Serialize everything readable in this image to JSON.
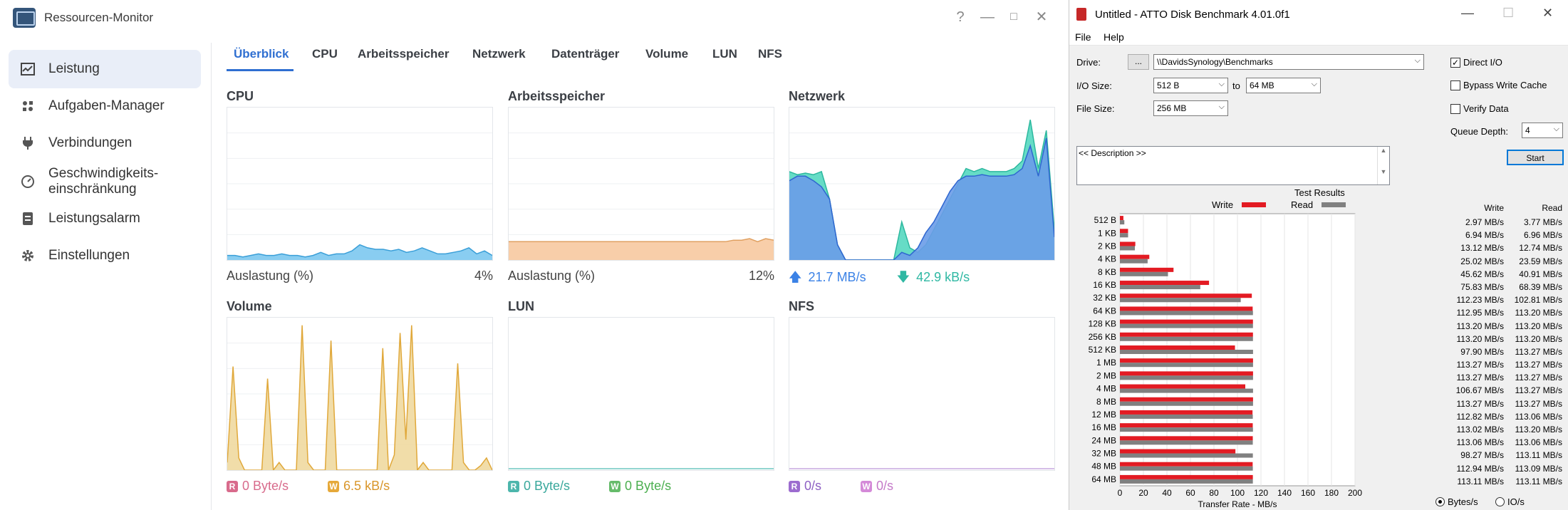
{
  "rm": {
    "title": "Ressourcen-Monitor",
    "window_buttons": [
      "?",
      "—",
      "□",
      "✕"
    ],
    "sidebar": [
      {
        "label": "Leistung",
        "icon": "chart-icon",
        "active": true
      },
      {
        "label": "Aufgaben-Manager",
        "icon": "tasks-icon",
        "active": false
      },
      {
        "label": "Verbindungen",
        "icon": "plug-icon",
        "active": false
      },
      {
        "label": "Geschwindigkeits-",
        "label2": "einschränkung",
        "icon": "gauge-icon",
        "active": false
      },
      {
        "label": "Leistungsalarm",
        "icon": "alarm-list-icon",
        "active": false
      },
      {
        "label": "Einstellungen",
        "icon": "gear-icon",
        "active": false
      }
    ],
    "tabs": [
      "Überblick",
      "CPU",
      "Arbeitsspeicher",
      "Netzwerk",
      "Datenträger",
      "Volume",
      "LUN",
      "NFS"
    ],
    "panels": {
      "cpu": {
        "title": "CPU",
        "foot_label": "Auslastung  (%)",
        "foot_value": "4%"
      },
      "mem": {
        "title": "Arbeitsspeicher",
        "foot_label": "Auslastung  (%)",
        "foot_value": "12%"
      },
      "net": {
        "title": "Netzwerk",
        "up": "21.7 MB/s",
        "down": "42.9 kB/s"
      },
      "vol": {
        "title": "Volume",
        "r_badge": "R",
        "r": "0 Byte/s",
        "w_badge": "W",
        "w": "6.5 kB/s"
      },
      "lun": {
        "title": "LUN",
        "r_badge": "R",
        "r": "0 Byte/s",
        "w_badge": "W",
        "w": "0 Byte/s"
      },
      "nfs": {
        "title": "NFS",
        "r_badge": "R",
        "r": "0/s",
        "w_badge": "W",
        "w": "0/s"
      }
    },
    "colors": {
      "accent": "#2f6fd1",
      "cpu": "#5fb7e8",
      "mem": "#f5c8a1",
      "net_up": "#3b82e6",
      "net_down": "#3ecfb4",
      "vol": "#e8c87a"
    }
  },
  "atto": {
    "title": "Untitled - ATTO Disk Benchmark 4.01.0f1",
    "menu": [
      "File",
      "Help"
    ],
    "drive_label": "Drive:",
    "drive_button": "...",
    "drive_value": "\\\\DavidsSynology\\Benchmarks",
    "io_label": "I/O Size:",
    "io_from": "512 B",
    "io_to_label": "to",
    "io_to": "64 MB",
    "filesize_label": "File Size:",
    "filesize": "256 MB",
    "direct_io": "Direct I/O",
    "bypass": "Bypass Write Cache",
    "verify": "Verify Data",
    "queue_label": "Queue Depth:",
    "queue": "4",
    "start": "Start",
    "description": "<< Description >>",
    "results_title": "Test Results",
    "write_legend": "Write",
    "read_legend": "Read",
    "col_write": "Write",
    "col_read": "Read",
    "xlabel": "Transfer Rate - MB/s",
    "unit_bytes": "Bytes/s",
    "unit_io": "IO/s"
  },
  "chart_data": [
    {
      "type": "bar",
      "title": "Test Results",
      "xlabel": "Transfer Rate - MB/s",
      "xlim": [
        0,
        200
      ],
      "x_ticks": [
        "0",
        "20",
        "40",
        "60",
        "80",
        "100",
        "120",
        "140",
        "160",
        "180",
        "200"
      ],
      "categories": [
        "512 B",
        "1 KB",
        "2 KB",
        "4 KB",
        "8 KB",
        "16 KB",
        "32 KB",
        "64 KB",
        "128 KB",
        "256 KB",
        "512 KB",
        "1 MB",
        "2 MB",
        "4 MB",
        "8 MB",
        "12 MB",
        "16 MB",
        "24 MB",
        "32 MB",
        "48 MB",
        "64 MB"
      ],
      "series": [
        {
          "name": "Write",
          "color": "#e31b23",
          "values": [
            2.97,
            6.94,
            13.12,
            25.02,
            45.62,
            75.83,
            112.23,
            112.95,
            113.2,
            113.2,
            97.9,
            113.27,
            113.27,
            106.67,
            113.27,
            112.82,
            113.02,
            113.06,
            98.27,
            112.94,
            113.11
          ]
        },
        {
          "name": "Read",
          "color": "#808080",
          "values": [
            3.77,
            6.96,
            12.74,
            23.59,
            40.91,
            68.39,
            102.81,
            113.2,
            113.2,
            113.2,
            113.27,
            113.27,
            113.27,
            113.27,
            113.27,
            113.06,
            113.2,
            113.06,
            113.11,
            113.09,
            113.11
          ]
        }
      ],
      "write_text": [
        "2.97 MB/s",
        "6.94 MB/s",
        "13.12 MB/s",
        "25.02 MB/s",
        "45.62 MB/s",
        "75.83 MB/s",
        "112.23 MB/s",
        "112.95 MB/s",
        "113.20 MB/s",
        "113.20 MB/s",
        "97.90 MB/s",
        "113.27 MB/s",
        "113.27 MB/s",
        "106.67 MB/s",
        "113.27 MB/s",
        "112.82 MB/s",
        "113.02 MB/s",
        "113.06 MB/s",
        "98.27 MB/s",
        "112.94 MB/s",
        "113.11 MB/s"
      ],
      "read_text": [
        "3.77 MB/s",
        "6.96 MB/s",
        "12.74 MB/s",
        "23.59 MB/s",
        "40.91 MB/s",
        "68.39 MB/s",
        "102.81 MB/s",
        "113.20 MB/s",
        "113.20 MB/s",
        "113.20 MB/s",
        "113.27 MB/s",
        "113.27 MB/s",
        "113.27 MB/s",
        "113.27 MB/s",
        "113.27 MB/s",
        "113.06 MB/s",
        "113.20 MB/s",
        "113.06 MB/s",
        "113.11 MB/s",
        "113.09 MB/s",
        "113.11 MB/s"
      ]
    },
    {
      "type": "area",
      "name": "cpu",
      "ylim": [
        0,
        100
      ],
      "values": [
        3,
        3,
        2,
        3,
        4,
        3,
        3,
        4,
        3,
        3,
        2,
        3,
        5,
        3,
        4,
        4,
        6,
        10,
        8,
        7,
        7,
        6,
        7,
        5,
        6,
        8,
        6,
        4,
        4,
        5,
        6,
        8,
        4,
        6,
        3
      ]
    },
    {
      "type": "area",
      "name": "mem",
      "ylim": [
        0,
        100
      ],
      "values": [
        12,
        12,
        12,
        12,
        12,
        12,
        12,
        12,
        12,
        12,
        12,
        12,
        12,
        12,
        12,
        12,
        12,
        12,
        12,
        12,
        12,
        12,
        12,
        12,
        12,
        12,
        12,
        12,
        13,
        13,
        14,
        12,
        14,
        13
      ]
    },
    {
      "type": "area",
      "name": "net",
      "ylim": [
        0,
        100
      ],
      "series": [
        {
          "name": "down",
          "values": [
            58,
            56,
            57,
            56,
            58,
            40,
            10,
            0,
            0,
            0,
            0,
            0,
            0,
            0,
            25,
            8,
            5,
            10,
            20,
            30,
            40,
            50,
            60,
            58,
            60,
            58,
            58,
            58,
            60,
            65,
            92,
            60,
            85,
            20
          ]
        },
        {
          "name": "up",
          "values": [
            52,
            55,
            55,
            52,
            48,
            40,
            10,
            0,
            0,
            0,
            0,
            0,
            0,
            0,
            5,
            3,
            8,
            18,
            25,
            35,
            45,
            52,
            55,
            55,
            56,
            55,
            55,
            55,
            56,
            60,
            75,
            55,
            80,
            15
          ]
        }
      ]
    },
    {
      "type": "area",
      "name": "volume",
      "ylim": [
        0,
        100
      ],
      "values": [
        5,
        68,
        8,
        0,
        0,
        0,
        0,
        60,
        0,
        5,
        0,
        0,
        0,
        95,
        5,
        0,
        0,
        0,
        85,
        0,
        0,
        0,
        0,
        0,
        0,
        0,
        0,
        80,
        0,
        10,
        90,
        20,
        95,
        0,
        5,
        0,
        0,
        0,
        0,
        0,
        70,
        5,
        0,
        0,
        3,
        8,
        0
      ]
    }
  ]
}
